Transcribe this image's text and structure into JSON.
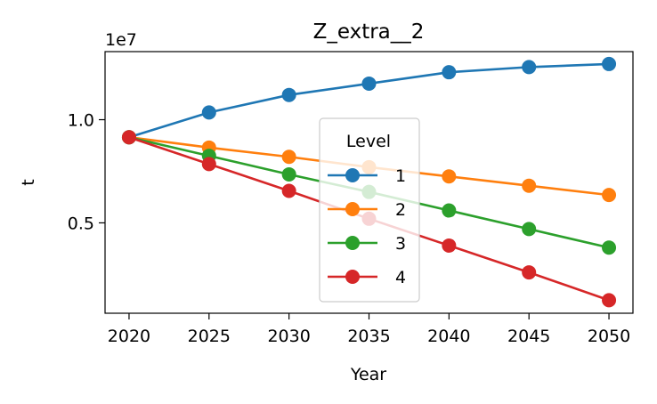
{
  "chart_data": {
    "type": "line",
    "title": "Z_extra__2",
    "xlabel": "Year",
    "ylabel": "t",
    "y_offset_label": "1e7",
    "x": [
      2020,
      2025,
      2030,
      2035,
      2040,
      2045,
      2050
    ],
    "xticks": [
      "2020",
      "2025",
      "2030",
      "2035",
      "2040",
      "2045",
      "2050"
    ],
    "xlim": [
      2018.5,
      2051.5
    ],
    "ylim": [
      0.062,
      1.33
    ],
    "yticks": [
      {
        "value": 0.5,
        "label": "0.5"
      },
      {
        "value": 1.0,
        "label": "1.0"
      }
    ],
    "grid": false,
    "legend": {
      "title": "Level",
      "placement": "center"
    },
    "series": [
      {
        "name": "1",
        "color": "#1f77b4",
        "values": [
          0.915,
          1.035,
          1.12,
          1.175,
          1.23,
          1.255,
          1.27
        ]
      },
      {
        "name": "2",
        "color": "#ff7f0e",
        "values": [
          0.915,
          0.865,
          0.82,
          0.77,
          0.725,
          0.68,
          0.635
        ]
      },
      {
        "name": "3",
        "color": "#2ca02c",
        "values": [
          0.915,
          0.825,
          0.735,
          0.65,
          0.56,
          0.47,
          0.38
        ]
      },
      {
        "name": "4",
        "color": "#d62728",
        "values": [
          0.915,
          0.785,
          0.655,
          0.52,
          0.39,
          0.26,
          0.125
        ]
      }
    ]
  }
}
